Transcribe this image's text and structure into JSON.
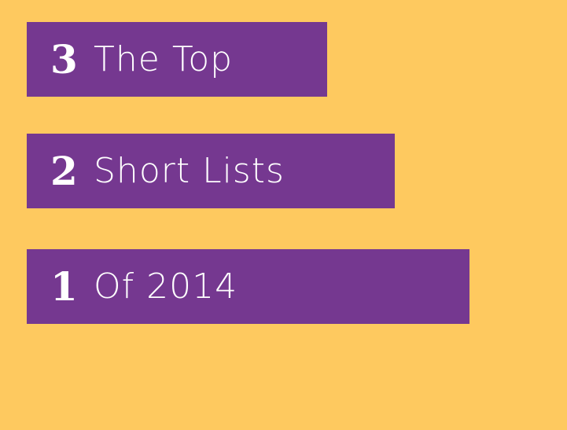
{
  "rows": [
    {
      "num": "3",
      "text": "The Top"
    },
    {
      "num": "2",
      "text": "Short Lists"
    },
    {
      "num": "1",
      "text": "Of 2014"
    }
  ],
  "colors": {
    "background": "#fec95f",
    "bar": "#753890"
  }
}
